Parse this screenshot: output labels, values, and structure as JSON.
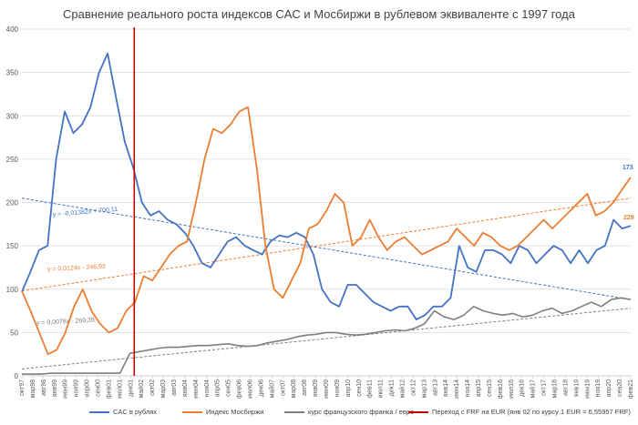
{
  "chart_data": {
    "type": "line",
    "title": "Сравнение реального роста индексов CAC и Мосбиржи в рублевом эквиваленте с 1997 года",
    "ylim": [
      0,
      400
    ],
    "yticks": [
      0,
      50,
      100,
      150,
      200,
      250,
      300,
      350,
      400
    ],
    "x_tick_labels": [
      "окт97",
      "мар98",
      "авг98",
      "янв99",
      "июн99",
      "ноя99",
      "апр00",
      "сен00",
      "фев01",
      "июл01",
      "дек01",
      "май02",
      "окт02",
      "мар03",
      "авг03",
      "янв04",
      "июн04",
      "ноя04",
      "апр05",
      "сен05",
      "фев06",
      "июл06",
      "дек06",
      "май07",
      "окт07",
      "мар08",
      "авг08",
      "янв09",
      "июн09",
      "ноя09",
      "апр10",
      "сен10",
      "фев11",
      "июл11",
      "дек11",
      "май12",
      "окт12",
      "мар13",
      "авг13",
      "янв14",
      "июн14",
      "ноя14",
      "апр15",
      "сен15",
      "фев16",
      "июл16",
      "дек16",
      "май17",
      "окт17",
      "мар18",
      "авг18",
      "янв19",
      "июн19",
      "ноя19",
      "апр20",
      "сен20",
      "фев21"
    ],
    "transition_index": 10,
    "series": [
      {
        "name": "CAC в рублях",
        "color": "#4472C4",
        "values": [
          97,
          120,
          145,
          150,
          250,
          305,
          280,
          290,
          310,
          350,
          372,
          320,
          270,
          240,
          200,
          185,
          190,
          180,
          175,
          165,
          150,
          130,
          125,
          140,
          155,
          160,
          150,
          145,
          140,
          155,
          162,
          160,
          165,
          160,
          140,
          100,
          85,
          80,
          105,
          105,
          95,
          85,
          80,
          75,
          80,
          80,
          65,
          70,
          80,
          80,
          90,
          150,
          125,
          120,
          145,
          145,
          140,
          130,
          150,
          145,
          130,
          140,
          150,
          145,
          130,
          145,
          130,
          145,
          150,
          180,
          170,
          173
        ]
      },
      {
        "name": "Индекс Мосбиржи",
        "color": "#ED7D31",
        "values": [
          98,
          75,
          50,
          25,
          30,
          50,
          80,
          100,
          75,
          60,
          50,
          55,
          75,
          85,
          115,
          110,
          125,
          140,
          150,
          155,
          200,
          250,
          285,
          280,
          290,
          305,
          310,
          240,
          150,
          100,
          90,
          110,
          130,
          170,
          175,
          190,
          210,
          200,
          150,
          160,
          180,
          160,
          145,
          155,
          160,
          150,
          140,
          145,
          150,
          155,
          170,
          160,
          150,
          165,
          160,
          150,
          145,
          150,
          160,
          170,
          180,
          170,
          180,
          190,
          200,
          210,
          185,
          190,
          200,
          215,
          229
        ]
      },
      {
        "name": "курс французского франка / евро",
        "color": "#7F7F7F",
        "values": [
          2,
          2,
          2,
          3,
          3,
          3,
          3,
          3,
          3,
          3,
          3,
          26,
          28,
          30,
          32,
          33,
          33,
          34,
          35,
          35,
          36,
          37,
          35,
          34,
          35,
          38,
          40,
          42,
          45,
          47,
          48,
          50,
          50,
          48,
          47,
          48,
          50,
          52,
          53,
          52,
          55,
          60,
          75,
          68,
          65,
          70,
          80,
          75,
          72,
          70,
          72,
          68,
          70,
          75,
          78,
          72,
          75,
          80,
          85,
          80,
          88,
          90,
          88
        ]
      }
    ],
    "transition_legend": "Переход с FRF на EUR (янв 02 по курсу 1 EUR = 6,55957 FRF)",
    "trendlines": [
      {
        "label": "y = -0,01382x + 700,11",
        "color": "#4472C4",
        "start": 205,
        "end": 88
      },
      {
        "label": "y = 0,0124x - 346,93",
        "color": "#ED7D31",
        "start": 98,
        "end": 205
      },
      {
        "label": "y = 0,0078x - 269,39",
        "color": "#7F7F7F",
        "start": 8,
        "end": 78
      }
    ],
    "end_labels": [
      {
        "text": "229",
        "color": "#ED7D31"
      },
      {
        "text": "173",
        "color": "#4472C4"
      }
    ]
  },
  "legend": {
    "cac": "CAC в рублях",
    "moex": "Индекс Мосбиржи",
    "frf": "курс французского франка / евро",
    "transition": "Переход с FRF на EUR (янв 02 по курсу 1 EUR = 6,55957 FRF)"
  }
}
